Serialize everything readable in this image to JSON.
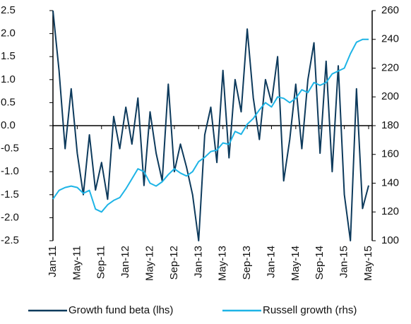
{
  "chart_data": {
    "type": "line",
    "categories": [
      "Jan-11",
      null,
      null,
      null,
      "May-11",
      null,
      null,
      null,
      "Sep-11",
      null,
      null,
      null,
      "Jan-12",
      null,
      null,
      null,
      "May-12",
      null,
      null,
      null,
      "Sep-12",
      null,
      null,
      null,
      "Jan-13",
      null,
      null,
      null,
      "May-13",
      null,
      null,
      null,
      "Sep-13",
      null,
      null,
      null,
      "Jan-14",
      null,
      null,
      null,
      "May-14",
      null,
      null,
      null,
      "Sep-14",
      null,
      null,
      null,
      "Jan-15",
      null,
      null,
      null,
      "May-15"
    ],
    "series": [
      {
        "name": "Growth fund beta (lhs)",
        "color": "#0d3a5c",
        "axis": "y",
        "values": [
          2.5,
          1.2,
          -0.5,
          0.8,
          -0.6,
          -1.5,
          -0.2,
          -1.4,
          -0.8,
          -1.6,
          0.2,
          -0.5,
          0.4,
          -0.4,
          0.6,
          -1.3,
          0.3,
          -0.6,
          -1.2,
          0.9,
          -1.0,
          -0.4,
          -0.9,
          -1.5,
          -2.5,
          -0.2,
          0.4,
          -0.8,
          1.2,
          -0.7,
          1.0,
          0.3,
          2.1,
          0.6,
          -0.3,
          1.0,
          0.5,
          1.5,
          -1.2,
          -0.3,
          0.9,
          -0.5,
          1.0,
          1.8,
          -0.6,
          1.4,
          -1.0,
          1.3,
          -1.5,
          -2.5,
          0.8,
          -1.8,
          -1.3
        ]
      },
      {
        "name": "Russell growth (rhs)",
        "color": "#1eb4e6",
        "axis": "y2",
        "values": [
          129,
          135,
          137,
          138,
          137,
          133,
          135,
          122,
          120,
          125,
          128,
          130,
          136,
          143,
          150,
          148,
          140,
          138,
          141,
          146,
          150,
          147,
          145,
          148,
          155,
          158,
          162,
          163,
          168,
          167,
          176,
          174,
          181,
          185,
          191,
          196,
          193,
          200,
          199,
          196,
          199,
          205,
          203,
          210,
          208,
          210,
          216,
          218,
          220,
          230,
          238,
          240,
          240
        ]
      }
    ],
    "ylim": [
      -2.5,
      2.5
    ],
    "yticks": [
      2.5,
      {
        "value": 2,
        "label": "2.0"
      },
      1.5,
      {
        "value": 1,
        "label": "1.0"
      },
      0.5,
      {
        "value": 0,
        "label": "0.0"
      },
      -0.5,
      {
        "value": -1,
        "label": "-1.0"
      },
      -1.5,
      {
        "value": -2,
        "label": "-2.0"
      },
      -2.5
    ],
    "y2lim": [
      100,
      260
    ],
    "y2ticks": [
      260,
      240,
      220,
      200,
      180,
      160,
      140,
      120,
      100
    ]
  }
}
